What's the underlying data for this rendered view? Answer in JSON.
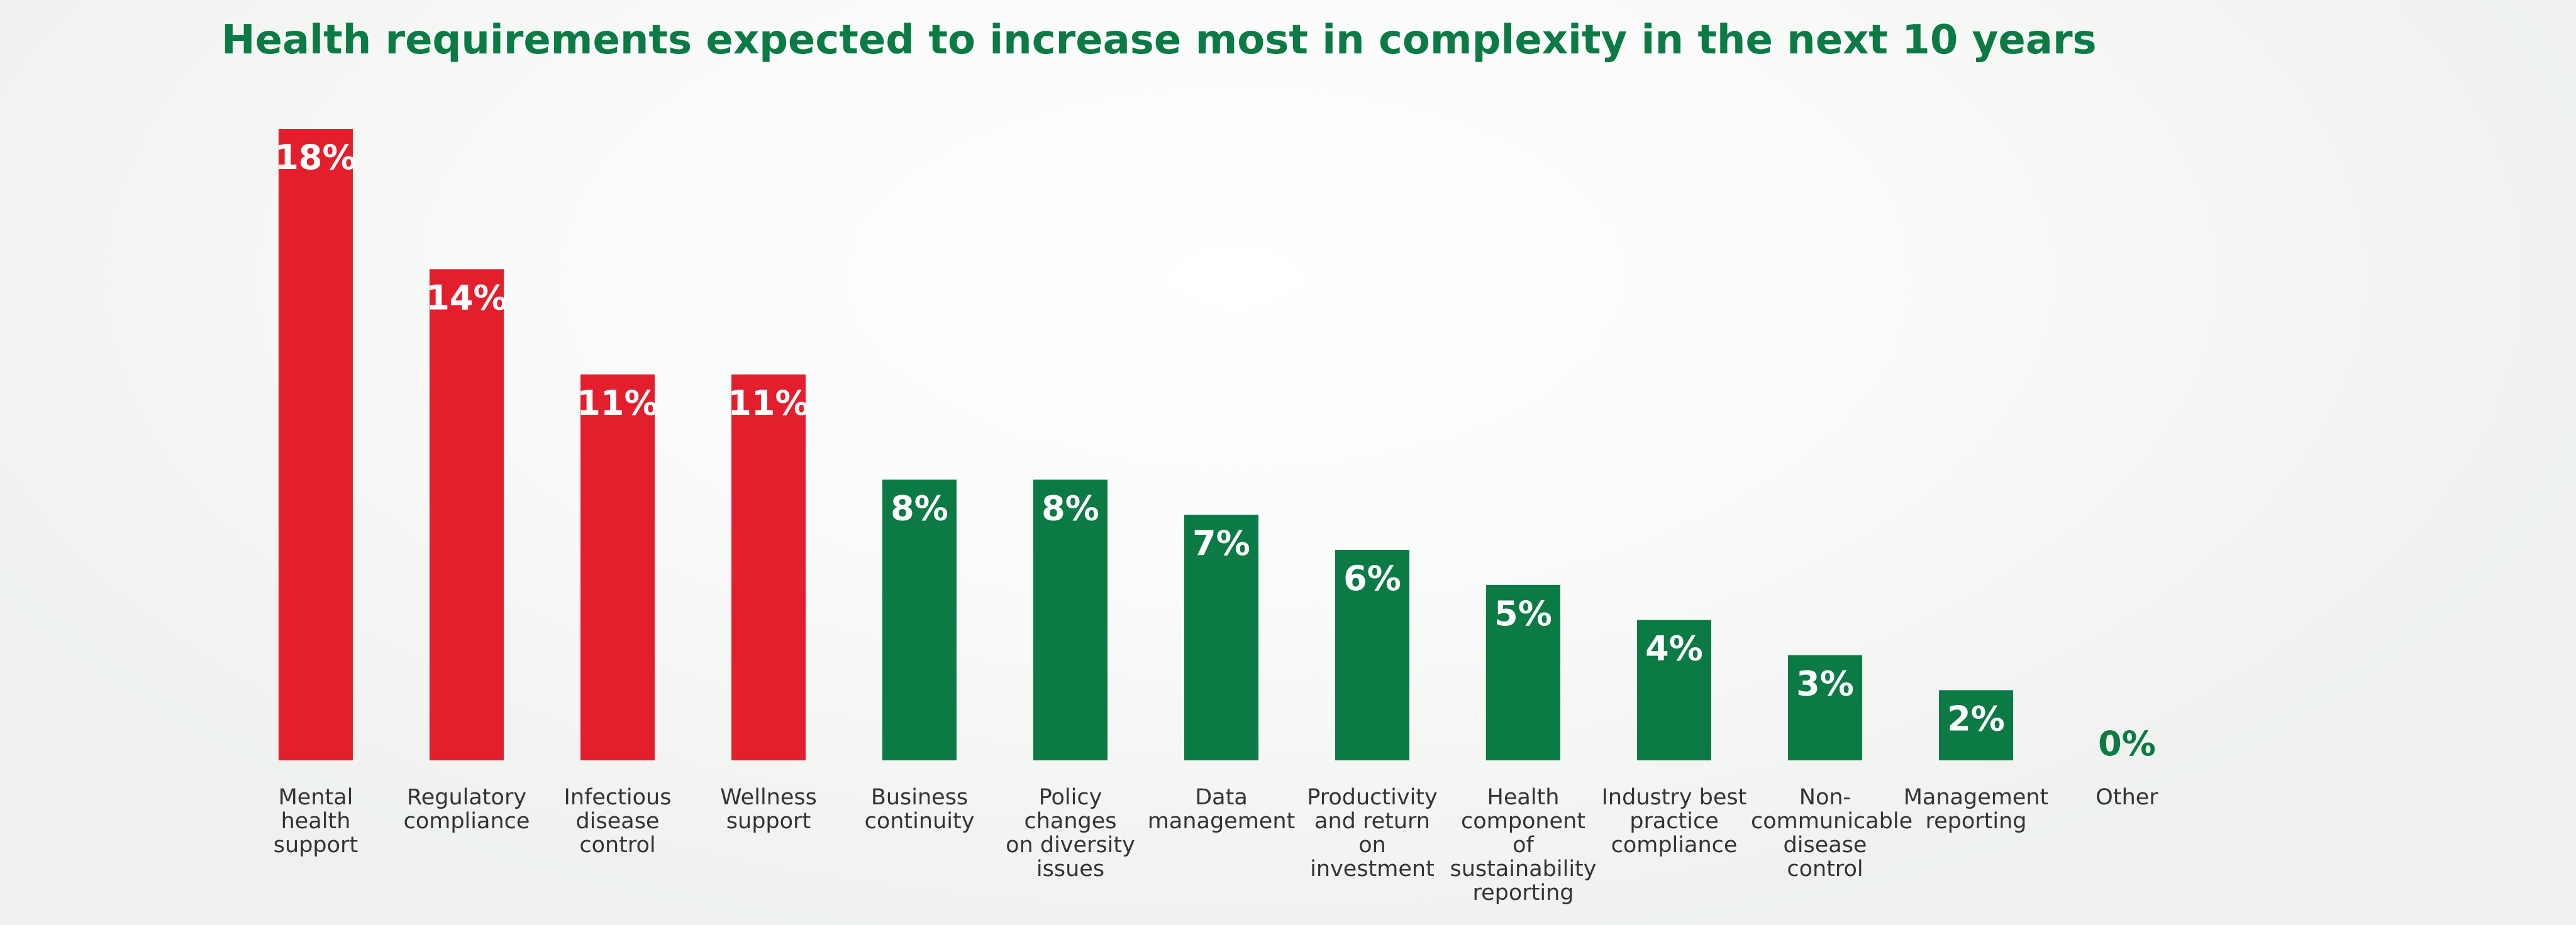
{
  "chart_data": {
    "type": "bar",
    "title": "Health requirements expected to increase most in complexity in the next 10 years",
    "categories": [
      "Mental\nhealth\nsupport",
      "Regulatory\ncompliance",
      "Infectious\ndisease\ncontrol",
      "Wellness\nsupport",
      "Business\ncontinuity",
      "Policy\nchanges\non diversity\nissues",
      "Data\nmanagement",
      "Productivity\nand return\non\ninvestment",
      "Health\ncomponent\nof\nsustainability\nreporting",
      "Industry best\npractice\ncompliance",
      "Non-\ncommunicable\ndisease\ncontrol",
      "Management\nreporting",
      "Other"
    ],
    "values": [
      18,
      14,
      11,
      11,
      8,
      8,
      7,
      6,
      5,
      4,
      3,
      2,
      0
    ],
    "data_labels": [
      "18%",
      "14%",
      "11%",
      "11%",
      "8%",
      "8%",
      "7%",
      "6%",
      "5%",
      "4%",
      "3%",
      "2%",
      "0%"
    ],
    "bar_colors": [
      "#e31e2d",
      "#e31e2d",
      "#e31e2d",
      "#e31e2d",
      "#0b7a45",
      "#0b7a45",
      "#0b7a45",
      "#0b7a45",
      "#0b7a45",
      "#0b7a45",
      "#0b7a45",
      "#0b7a45",
      "#0b7a45"
    ],
    "colors": {
      "highlight": "#e31e2d",
      "standard": "#0b7a45",
      "title": "#0b7a45",
      "label_text": "#333333"
    },
    "xlabel": "",
    "ylabel": "",
    "ylim": [
      0,
      18
    ],
    "grid": false,
    "legend": "none"
  }
}
